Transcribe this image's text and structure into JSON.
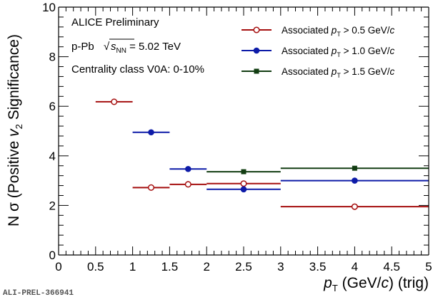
{
  "chart_data": {
    "type": "scatter",
    "x_label": {
      "prefix": "p",
      "sub": "T",
      "suffix1": " (GeV/",
      "c": "c",
      "suffix2": ") (trig)"
    },
    "y_label": {
      "prefix": "N σ (Positive ",
      "v": "v",
      "sub": "2",
      "suffix": " Significance)"
    },
    "xlim": [
      0,
      5
    ],
    "ylim": [
      0,
      10
    ],
    "x_ticks": [
      0,
      0.5,
      1,
      1.5,
      2,
      2.5,
      3,
      3.5,
      4,
      4.5,
      5
    ],
    "x_tick_labels": [
      "0",
      "0.5",
      "1",
      "1.5",
      "2",
      "2.5",
      "3",
      "3.5",
      "4",
      "4.5",
      "5"
    ],
    "y_ticks": [
      0,
      2,
      4,
      6,
      8,
      10
    ],
    "y_tick_labels": [
      "0",
      "2",
      "4",
      "6",
      "8",
      "10"
    ],
    "legend_position": "top-right",
    "series": [
      {
        "label_prefix": "Associated ",
        "label_p": "p",
        "label_sub": "T",
        "label_suffix": " > 0.5 GeV/",
        "label_c": "c",
        "color": "#a50f0f",
        "marker": "open-circle",
        "points": [
          {
            "x": 0.75,
            "y": 6.18,
            "xlo": 0.5,
            "xhi": 1.0
          },
          {
            "x": 1.25,
            "y": 2.72,
            "xlo": 1.0,
            "xhi": 1.5
          },
          {
            "x": 1.75,
            "y": 2.85,
            "xlo": 1.5,
            "xhi": 2.0
          },
          {
            "x": 2.5,
            "y": 2.88,
            "xlo": 2.0,
            "xhi": 3.0
          },
          {
            "x": 4.0,
            "y": 1.95,
            "xlo": 3.0,
            "xhi": 5.0
          }
        ]
      },
      {
        "label_prefix": "Associated ",
        "label_p": "p",
        "label_sub": "T",
        "label_suffix": " > 1.0 GeV/",
        "label_c": "c",
        "color": "#0d1ba8",
        "marker": "filled-circle",
        "points": [
          {
            "x": 1.25,
            "y": 4.95,
            "xlo": 1.0,
            "xhi": 1.5
          },
          {
            "x": 1.75,
            "y": 3.47,
            "xlo": 1.5,
            "xhi": 2.0
          },
          {
            "x": 2.5,
            "y": 2.65,
            "xlo": 2.0,
            "xhi": 3.0
          },
          {
            "x": 4.0,
            "y": 3.0,
            "xlo": 3.0,
            "xhi": 5.0
          }
        ]
      },
      {
        "label_prefix": "Associated ",
        "label_p": "p",
        "label_sub": "T",
        "label_suffix": " > 1.5 GeV/",
        "label_c": "c",
        "color": "#123d12",
        "marker": "filled-square",
        "points": [
          {
            "x": 2.5,
            "y": 3.36,
            "xlo": 2.0,
            "xhi": 3.0
          },
          {
            "x": 4.0,
            "y": 3.5,
            "xlo": 3.0,
            "xhi": 5.0
          }
        ]
      }
    ],
    "annotations": {
      "line1": "ALICE Preliminary",
      "line2_prefix": "p-Pb ",
      "line2_s": "s",
      "line2_sub": "NN",
      "line2_suffix": " = 5.02 TeV",
      "line3": "Centrality class V0A: 0-10%"
    }
  },
  "preliminary_id": "ALI-PREL-366941"
}
